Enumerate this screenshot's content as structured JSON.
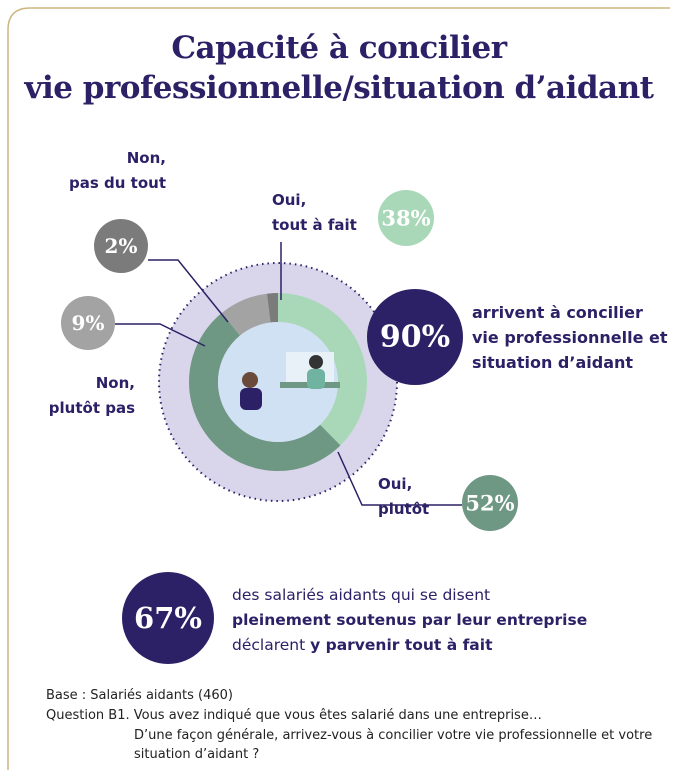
{
  "chart_data": {
    "type": "donut",
    "title": "Capacité à concilier\nvie professionnelle/situation d’aidant",
    "categories": [
      "Oui,\ntout à fait",
      "Oui,\nplutôt",
      "Non,\nplutôt pas",
      "Non,\npas du tout"
    ],
    "values": [
      38,
      52,
      9,
      2
    ],
    "value_labels": [
      "38%",
      "52%",
      "9%",
      "2%"
    ],
    "colors": [
      "#a9d8b8",
      "#6f9884",
      "#a3a3a3",
      "#7b7b7b"
    ]
  },
  "callouts": [
    {
      "value": 90,
      "label": "90%",
      "text": "arrivent à concilier\nvie professionnelle et\nsituation d’aidant"
    },
    {
      "value": 67,
      "label": "67%",
      "text_parts": [
        "des salariés aidants qui se disent",
        "pleinement soutenus par leur entreprise",
        "déclarent",
        "y parvenir tout à fait"
      ]
    }
  ],
  "notes": [
    "Base : Salariés aidants (460)",
    "Question B1. Vous avez indiqué que vous êtes salarié dans une entreprise…",
    "D’une façon générale, arrivez-vous à concilier votre vie professionnelle et votre situation d’aidant ?"
  ]
}
